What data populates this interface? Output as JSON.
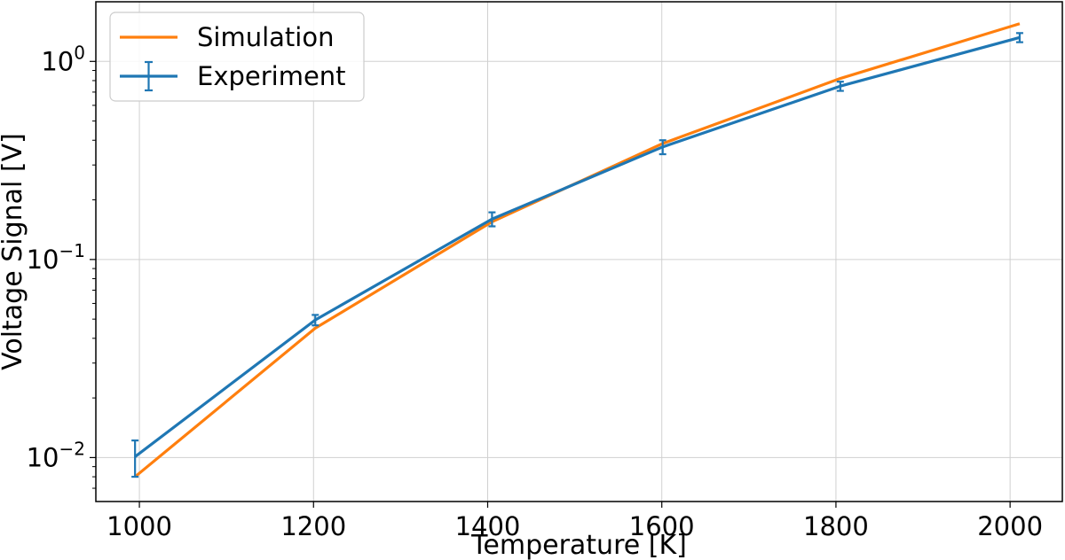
{
  "chart_data": {
    "type": "line",
    "title": "",
    "xlabel": "Temperature [K]",
    "ylabel": "Voltage Signal [V]",
    "x_scale": "linear",
    "y_scale": "log",
    "xlim": [
      950,
      2060
    ],
    "ylim": [
      0.006,
      2.0
    ],
    "grid": true,
    "x_ticks": [
      1000,
      1200,
      1400,
      1600,
      1800,
      2000
    ],
    "x_tick_labels": [
      "1000",
      "1200",
      "1400",
      "1600",
      "1800",
      "2000"
    ],
    "y_ticks": [
      {
        "value": 0.01,
        "base": "10",
        "exp": "−2"
      },
      {
        "value": 0.1,
        "base": "10",
        "exp": "−1"
      },
      {
        "value": 1,
        "base": "10",
        "exp": "0"
      }
    ],
    "legend": {
      "placement": "upper left"
    },
    "series": [
      {
        "name": "Simulation",
        "color": "#ff7f0e",
        "x": [
          995,
          1202,
          1405,
          1601,
          1805,
          2011
        ],
        "y": [
          0.008,
          0.045,
          0.155,
          0.385,
          0.82,
          1.55
        ]
      },
      {
        "name": "Experiment",
        "color": "#1f77b4",
        "x": [
          995,
          1202,
          1405,
          1601,
          1805,
          2011
        ],
        "y": [
          0.0101,
          0.0495,
          0.16,
          0.37,
          0.75,
          1.32
        ],
        "yerr": [
          0.0021,
          0.003,
          0.013,
          0.03,
          0.04,
          0.07
        ],
        "xerr": [
          0,
          0,
          0,
          0,
          0,
          0
        ]
      }
    ]
  }
}
